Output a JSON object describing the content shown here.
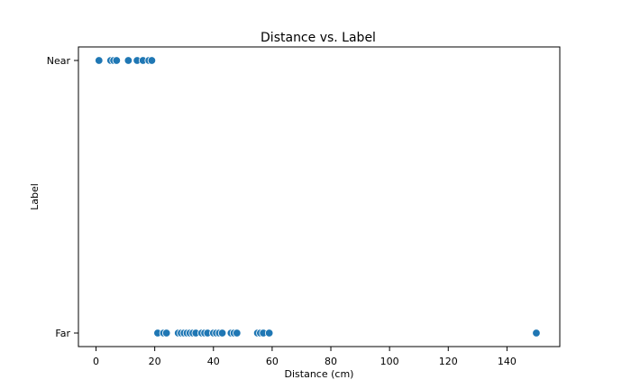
{
  "chart_data": {
    "type": "scatter",
    "title": "Distance vs. Label",
    "xlabel": "Distance (cm)",
    "ylabel": "Label",
    "xlim": [
      -6,
      158
    ],
    "xticks": [
      0,
      20,
      40,
      60,
      80,
      100,
      120,
      140
    ],
    "xtick_labels": [
      "0",
      "20",
      "40",
      "60",
      "80",
      "100",
      "120",
      "140"
    ],
    "yticks": [
      "Near",
      "Far"
    ],
    "grid": false,
    "marker_color": "#1f77b4",
    "marker_edge_color": "#ffffff",
    "points": [
      {
        "x": 1,
        "y": "Near"
      },
      {
        "x": 5,
        "y": "Near"
      },
      {
        "x": 6,
        "y": "Near"
      },
      {
        "x": 7,
        "y": "Near"
      },
      {
        "x": 11,
        "y": "Near"
      },
      {
        "x": 14,
        "y": "Near"
      },
      {
        "x": 16,
        "y": "Near"
      },
      {
        "x": 18,
        "y": "Near"
      },
      {
        "x": 19,
        "y": "Near"
      },
      {
        "x": 21,
        "y": "Far"
      },
      {
        "x": 23,
        "y": "Far"
      },
      {
        "x": 24,
        "y": "Far"
      },
      {
        "x": 28,
        "y": "Far"
      },
      {
        "x": 29,
        "y": "Far"
      },
      {
        "x": 30,
        "y": "Far"
      },
      {
        "x": 31,
        "y": "Far"
      },
      {
        "x": 32,
        "y": "Far"
      },
      {
        "x": 33,
        "y": "Far"
      },
      {
        "x": 34,
        "y": "Far"
      },
      {
        "x": 36,
        "y": "Far"
      },
      {
        "x": 37,
        "y": "Far"
      },
      {
        "x": 38,
        "y": "Far"
      },
      {
        "x": 40,
        "y": "Far"
      },
      {
        "x": 41,
        "y": "Far"
      },
      {
        "x": 42,
        "y": "Far"
      },
      {
        "x": 43,
        "y": "Far"
      },
      {
        "x": 46,
        "y": "Far"
      },
      {
        "x": 47,
        "y": "Far"
      },
      {
        "x": 48,
        "y": "Far"
      },
      {
        "x": 55,
        "y": "Far"
      },
      {
        "x": 56,
        "y": "Far"
      },
      {
        "x": 57,
        "y": "Far"
      },
      {
        "x": 59,
        "y": "Far"
      },
      {
        "x": 150,
        "y": "Far"
      }
    ]
  }
}
